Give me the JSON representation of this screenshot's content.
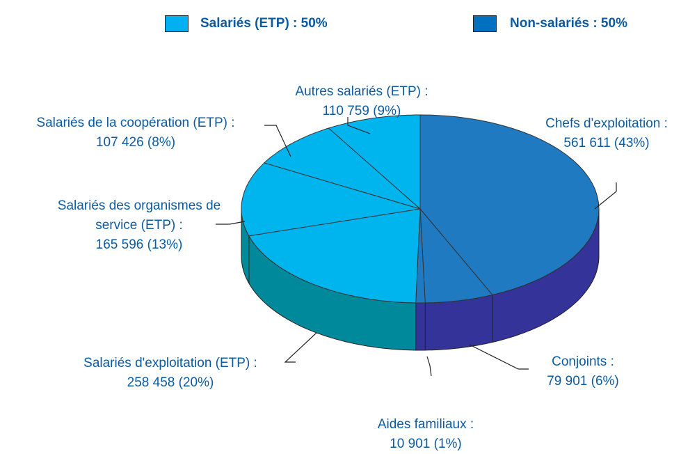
{
  "chart_data": {
    "type": "pie3d",
    "legend": [
      {
        "label": "Salariés (ETP) : 50%",
        "color": "#00b0f0"
      },
      {
        "label": "Non-salariés : 50%",
        "color": "#0070c0"
      }
    ],
    "categories": [
      "Chefs d'exploitation :",
      "Conjoints :",
      "Aides familiaux :",
      "Salariés d'exploitation (ETP) :",
      "Salariés des organismes de service (ETP) :",
      "Salariés de la coopération (ETP) :",
      "Autres salariés (ETP) :"
    ],
    "values": [
      561611,
      79901,
      10901,
      258458,
      165596,
      107426,
      110759
    ],
    "value_labels": [
      "561 611 (43%)",
      "79 901 (6%)",
      "10 901 (1%)",
      "258 458 (20%)",
      "165 596 (13%)",
      "107 426 (8%)",
      "110 759 (9%)"
    ],
    "colors": [
      "#1f7ac2",
      "#1f7ac2",
      "#1f7ac2",
      "#00b4ee",
      "#00b4ee",
      "#00b4ee",
      "#00b4ee"
    ],
    "side_colors": [
      "#333399",
      "#333399",
      "#333399",
      "#00899a",
      "#00899a",
      "#00899a",
      "#00899a"
    ]
  }
}
